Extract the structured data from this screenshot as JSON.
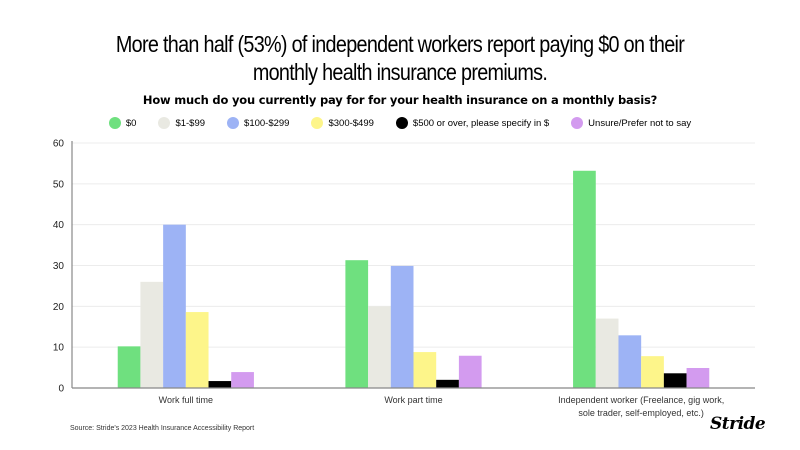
{
  "chart_data": {
    "type": "bar",
    "title": "More than half (53%) of independent workers report paying $0 on their monthly health insurance premiums.",
    "title_lines": [
      "More than half (53%) of independent workers report paying $0 on their",
      "monthly health insurance premiums."
    ],
    "subtitle": "How much do you currently pay for for your health insurance on a monthly basis?",
    "categories": [
      "Work full time",
      "Work part time",
      "Independent worker (Freelance, gig work, sole trader, self-employed, etc.)"
    ],
    "category_lines": [
      [
        "Work full time"
      ],
      [
        "Work part time"
      ],
      [
        "Independent worker (Freelance, gig work,",
        "sole trader, self-employed, etc.)"
      ]
    ],
    "series": [
      {
        "name": "$0",
        "color": "#6fe07f",
        "values": [
          10.2,
          31.3,
          53.2
        ]
      },
      {
        "name": "$1-$99",
        "color": "#e9e9e2",
        "values": [
          26.0,
          20.0,
          17.0
        ]
      },
      {
        "name": "$100-$299",
        "color": "#9db3f5",
        "values": [
          40.0,
          29.9,
          12.9
        ]
      },
      {
        "name": "$300-$499",
        "color": "#fdf58a",
        "values": [
          18.6,
          8.8,
          7.8
        ]
      },
      {
        "name": "$500 or over, please specify in $",
        "color": "#000000",
        "values": [
          1.7,
          2.0,
          3.6
        ]
      },
      {
        "name": "Unsure/Prefer not to say",
        "color": "#d39bef",
        "values": [
          3.9,
          7.9,
          4.9
        ]
      }
    ],
    "yticks": [
      0,
      10,
      20,
      30,
      40,
      50,
      60
    ],
    "ylim": [
      0,
      60
    ],
    "xlabel": "",
    "ylabel": "",
    "grid": true,
    "legend_position": "top-center"
  },
  "footer": {
    "source": "Source: Stride's 2023 Health Insurance Accessibility Report",
    "logo": "Stride"
  }
}
